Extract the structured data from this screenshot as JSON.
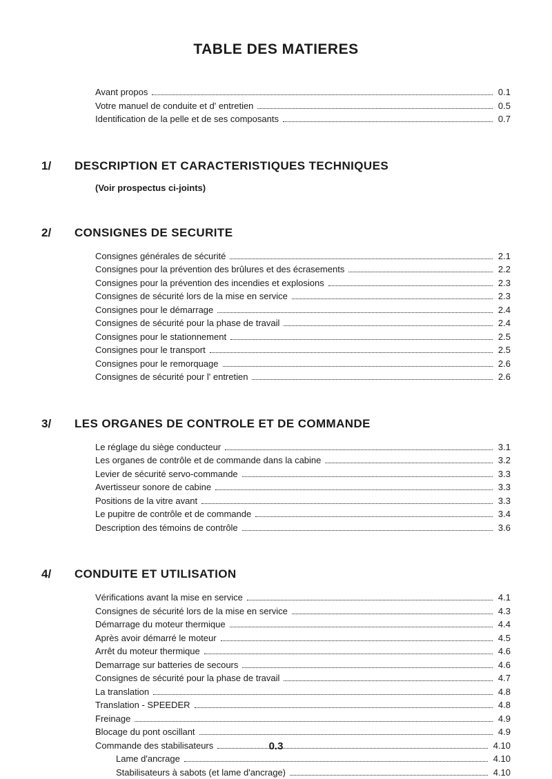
{
  "title": "TABLE DES MATIERES",
  "page_number": "0.3",
  "colors": {
    "text": "#1a1a1a",
    "bg": "#ffffff"
  },
  "typography": {
    "title_fontsize": 21,
    "section_fontsize": 17,
    "entry_fontsize": 13,
    "font_family": "Arial"
  },
  "intro_entries": [
    {
      "label": "Avant propos",
      "page": "0.1"
    },
    {
      "label": "Votre manuel de conduite et d' entretien",
      "page": "0.5"
    },
    {
      "label": "Identification de la pelle et de ses composants",
      "page": "0.7"
    }
  ],
  "sections": [
    {
      "num": "1/",
      "title": "DESCRIPTION ET CARACTERISTIQUES TECHNIQUES",
      "note": "(Voir prospectus ci-joints)",
      "entries": []
    },
    {
      "num": "2/",
      "title": "CONSIGNES DE SECURITE",
      "entries": [
        {
          "label": "Consignes générales de sécurité",
          "page": "2.1"
        },
        {
          "label": "Consignes pour la prévention des brûlures et des écrasements",
          "page": "2.2"
        },
        {
          "label": "Consignes pour la prévention des incendies et explosions",
          "page": "2.3"
        },
        {
          "label": "Consignes de sécurité lors de la mise en service",
          "page": "2.3"
        },
        {
          "label": "Consignes pour le démarrage",
          "page": "2.4"
        },
        {
          "label": "Consignes de sécurité pour la phase de travail",
          "page": "2.4"
        },
        {
          "label": "Consignes pour le stationnement",
          "page": "2.5"
        },
        {
          "label": "Consignes pour le transport",
          "page": "2.5"
        },
        {
          "label": "Consignes pour le remorquage",
          "page": "2.6"
        },
        {
          "label": "Consignes de sécurité pour l' entretien",
          "page": "2.6"
        }
      ]
    },
    {
      "num": "3/",
      "title": "LES ORGANES DE CONTROLE ET DE COMMANDE",
      "entries": [
        {
          "label": "Le réglage du siège conducteur",
          "page": "3.1"
        },
        {
          "label": "Les organes de contrôle et de commande dans la cabine",
          "page": "3.2"
        },
        {
          "label": "Levier de sécurité servo-commande",
          "page": "3.3"
        },
        {
          "label": "Avertisseur sonore de cabine",
          "page": "3.3"
        },
        {
          "label": "Positions de la vitre avant",
          "page": "3.3"
        },
        {
          "label": "Le pupitre de contrôle et de commande",
          "page": "3.4"
        },
        {
          "label": "Description des témoins de contrôle",
          "page": "3.6"
        }
      ]
    },
    {
      "num": "4/",
      "title": "CONDUITE ET UTILISATION",
      "entries": [
        {
          "label": "Vérifications avant la mise en service",
          "page": "4.1"
        },
        {
          "label": "Consignes de sécurité lors de la mise en service",
          "page": "4.3"
        },
        {
          "label": "Démarrage du moteur thermique",
          "page": "4.4"
        },
        {
          "label": "Après avoir démarré le moteur",
          "page": "4.5"
        },
        {
          "label": "Arrêt du moteur thermique",
          "page": "4.6"
        },
        {
          "label": "Demarrage sur batteries de secours",
          "page": "4.6"
        },
        {
          "label": "Consignes de sécurité pour la phase de travail",
          "page": "4.7"
        },
        {
          "label": "La translation",
          "page": "4.8"
        },
        {
          "label": "Translation - SPEEDER",
          "page": "4.8"
        },
        {
          "label": "Freinage",
          "page": "4.9"
        },
        {
          "label": "Blocage du pont oscillant",
          "page": "4.9"
        },
        {
          "label": "Commande des stabilisateurs",
          "page": "4.10"
        },
        {
          "label": "Lame d'ancrage",
          "page": "4.10",
          "indent": true
        },
        {
          "label": "Stabilisateurs à sabots (et lame d'ancrage)",
          "page": "4.10",
          "indent": true
        }
      ]
    }
  ]
}
